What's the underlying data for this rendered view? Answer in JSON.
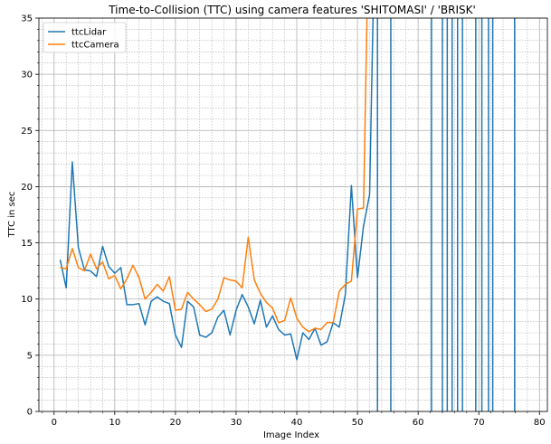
{
  "chart_data": {
    "type": "line",
    "title": "Time-to-Collision (TTC) using camera features 'SHITOMASI' / 'BRISK'",
    "xlabel": "Image Index",
    "ylabel": "TTC in sec",
    "xlim": [
      -2.5,
      81.3
    ],
    "ylim": [
      0,
      35
    ],
    "x_ticks": [
      0,
      10,
      20,
      30,
      40,
      50,
      60,
      70,
      80
    ],
    "y_ticks": [
      0,
      5,
      10,
      15,
      20,
      25,
      30,
      35
    ],
    "grid": true,
    "minor_grid": true,
    "legend_position": "top-left",
    "series": [
      {
        "name": "ttcLidar",
        "color": "#1f77b4",
        "points": [
          [
            1,
            13.5
          ],
          [
            2,
            11.0
          ],
          [
            3,
            22.2
          ],
          [
            4,
            14.6
          ],
          [
            5,
            12.6
          ],
          [
            6,
            12.5
          ],
          [
            7,
            12.0
          ],
          [
            8,
            14.7
          ],
          [
            9,
            12.9
          ],
          [
            10,
            12.3
          ],
          [
            11,
            12.8
          ],
          [
            12,
            9.5
          ],
          [
            13,
            9.5
          ],
          [
            14,
            9.6
          ],
          [
            15,
            7.7
          ],
          [
            16,
            9.8
          ],
          [
            17,
            10.2
          ],
          [
            18,
            9.8
          ],
          [
            19,
            9.6
          ],
          [
            20,
            6.8
          ],
          [
            21,
            5.7
          ],
          [
            22,
            9.8
          ],
          [
            23,
            9.3
          ],
          [
            24,
            6.8
          ],
          [
            25,
            6.6
          ],
          [
            26,
            7.0
          ],
          [
            27,
            8.4
          ],
          [
            28,
            9.0
          ],
          [
            29,
            6.8
          ],
          [
            30,
            9.0
          ],
          [
            31,
            10.4
          ],
          [
            32,
            9.3
          ],
          [
            33,
            7.8
          ],
          [
            34,
            9.9
          ],
          [
            35,
            7.5
          ],
          [
            36,
            8.5
          ],
          [
            37,
            7.3
          ],
          [
            38,
            6.8
          ],
          [
            39,
            6.9
          ],
          [
            40,
            4.6
          ],
          [
            41,
            7.0
          ],
          [
            42,
            6.4
          ],
          [
            43,
            7.4
          ],
          [
            44,
            5.9
          ],
          [
            45,
            6.2
          ],
          [
            46,
            7.9
          ],
          [
            47,
            7.5
          ],
          [
            48,
            10.4
          ],
          [
            49,
            20.1
          ],
          [
            50,
            11.9
          ],
          [
            51,
            16.5
          ],
          [
            52,
            19.3
          ],
          [
            52.6,
            36
          ]
        ],
        "spikes": [
          53.3,
          55.5,
          62.2,
          64.0,
          64.8,
          65.6,
          66.5,
          67.3,
          69.5,
          70.5,
          71.6,
          72.3,
          75.9
        ]
      },
      {
        "name": "ttcCamera",
        "color": "#ff7f0e",
        "points": [
          [
            1,
            12.8
          ],
          [
            2,
            12.7
          ],
          [
            3,
            14.5
          ],
          [
            4,
            12.8
          ],
          [
            5,
            12.5
          ],
          [
            6,
            14.0
          ],
          [
            7,
            12.7
          ],
          [
            8,
            13.3
          ],
          [
            9,
            11.8
          ],
          [
            10,
            12.1
          ],
          [
            11,
            10.9
          ],
          [
            12,
            11.8
          ],
          [
            13,
            13.0
          ],
          [
            14,
            11.9
          ],
          [
            15,
            10.0
          ],
          [
            16,
            10.6
          ],
          [
            17,
            11.3
          ],
          [
            18,
            10.7
          ],
          [
            19,
            12.0
          ],
          [
            20,
            9.0
          ],
          [
            21,
            9.1
          ],
          [
            22,
            10.6
          ],
          [
            23,
            10.0
          ],
          [
            24,
            9.5
          ],
          [
            25,
            8.9
          ],
          [
            26,
            9.1
          ],
          [
            27,
            10.0
          ],
          [
            28,
            11.9
          ],
          [
            29,
            11.7
          ],
          [
            30,
            11.6
          ],
          [
            31,
            11.0
          ],
          [
            32,
            15.5
          ],
          [
            33,
            11.7
          ],
          [
            34,
            10.5
          ],
          [
            35,
            9.7
          ],
          [
            36,
            9.2
          ],
          [
            37,
            7.9
          ],
          [
            38,
            8.1
          ],
          [
            39,
            10.1
          ],
          [
            40,
            8.3
          ],
          [
            41,
            7.5
          ],
          [
            42,
            7.1
          ],
          [
            43,
            7.4
          ],
          [
            44,
            7.3
          ],
          [
            45,
            7.9
          ],
          [
            46,
            7.9
          ],
          [
            47,
            10.7
          ],
          [
            48,
            11.3
          ],
          [
            49,
            11.6
          ],
          [
            50,
            18.0
          ],
          [
            51,
            18.1
          ],
          [
            51.6,
            36
          ]
        ]
      }
    ]
  }
}
